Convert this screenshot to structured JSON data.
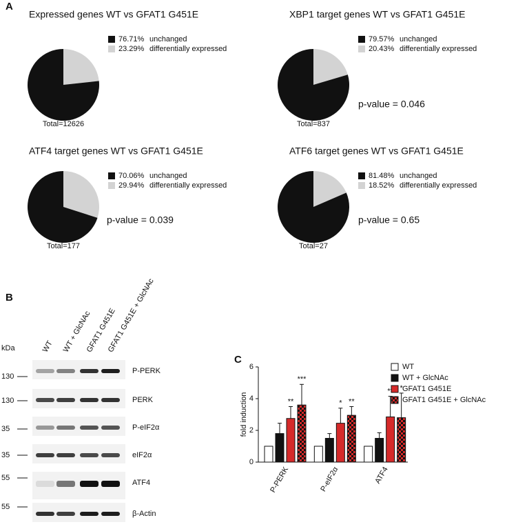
{
  "panels": [
    "A",
    "B",
    "C"
  ],
  "chart_data": [
    {
      "type": "pie",
      "title": "Expressed genes WT vs GFAT1 G451E",
      "categories": [
        "unchanged",
        "differentially expressed"
      ],
      "values": [
        76.71,
        23.29
      ],
      "value_labels": [
        "76.71%",
        "23.29%"
      ],
      "colors": [
        "#111111",
        "#d3d3d3"
      ],
      "total": "Total=12626"
    },
    {
      "type": "pie",
      "title": "XBP1 target genes WT vs GFAT1 G451E",
      "categories": [
        "unchanged",
        "differentially expressed"
      ],
      "values": [
        79.57,
        20.43
      ],
      "value_labels": [
        "79.57%",
        "20.43%"
      ],
      "colors": [
        "#111111",
        "#d3d3d3"
      ],
      "total": "Total=837",
      "p_value": "p-value = 0.046"
    },
    {
      "type": "pie",
      "title": "ATF4 target genes WT vs GFAT1 G451E",
      "categories": [
        "unchanged",
        "differentially expressed"
      ],
      "values": [
        70.06,
        29.94
      ],
      "value_labels": [
        "70.06%",
        "29.94%"
      ],
      "colors": [
        "#111111",
        "#d3d3d3"
      ],
      "total": "Total=177",
      "p_value": "p-value = 0.039"
    },
    {
      "type": "pie",
      "title": "ATF6 target genes WT vs GFAT1 G451E",
      "categories": [
        "unchanged",
        "differentially expressed"
      ],
      "values": [
        81.48,
        18.52
      ],
      "value_labels": [
        "81.48%",
        "18.52%"
      ],
      "colors": [
        "#111111",
        "#d3d3d3"
      ],
      "total": "Total=27",
      "p_value": "p-value = 0.65"
    },
    {
      "type": "bar",
      "y_label": "fold induction",
      "categories": [
        "P-PERK",
        "P-eIF2α",
        "ATF4"
      ],
      "ylim": [
        0,
        6
      ],
      "yticks": [
        0,
        2,
        4,
        6
      ],
      "series": [
        {
          "name": "WT",
          "color": "#ffffff",
          "values": [
            1,
            1,
            1
          ],
          "errors": [
            null,
            null,
            null
          ],
          "annotations": [
            null,
            null,
            null
          ]
        },
        {
          "name": "WT + GlcNAc",
          "color": "#111111",
          "values": [
            1.8,
            1.5,
            1.5
          ],
          "errors": [
            0.65,
            0.3,
            0.35
          ],
          "annotations": [
            null,
            null,
            null
          ]
        },
        {
          "name": "GFAT1 G451E",
          "color": "#d62a2a",
          "values": [
            2.75,
            2.45,
            2.85
          ],
          "errors": [
            0.75,
            0.95,
            1.3
          ],
          "annotations": [
            "**",
            "*",
            "**"
          ]
        },
        {
          "name": "GFAT1 G451E + GlcNAc",
          "color": "#d62a2a",
          "pattern_color": "#111111",
          "pattern": "checker",
          "values": [
            3.6,
            2.95,
            2.8
          ],
          "errors": [
            1.3,
            0.55,
            1.55
          ],
          "annotations": [
            "***",
            "**",
            "*"
          ]
        }
      ]
    }
  ],
  "blot": {
    "kda": "kDa",
    "lanes": [
      "WT",
      "WT + GlcNAc",
      "GFAT1 G451E",
      "GFAT1 G451E + GlcNAc"
    ],
    "rows": [
      {
        "marker": "130",
        "label": "P-PERK"
      },
      {
        "marker": "130",
        "label": "PERK"
      },
      {
        "marker": "35",
        "label": "P-eIF2α"
      },
      {
        "marker": "35",
        "label": "eIF2α"
      },
      {
        "marker": "55",
        "label": "ATF4"
      },
      {
        "marker": "55",
        "label": "β-Actin"
      }
    ]
  }
}
